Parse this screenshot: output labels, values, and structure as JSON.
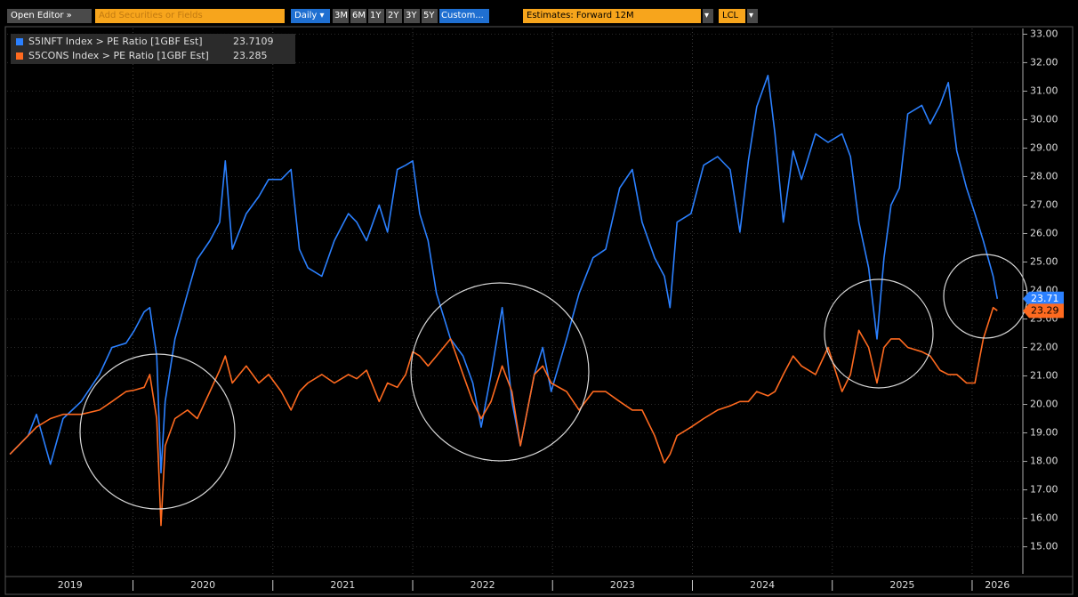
{
  "toolbar": {
    "open_editor": "Open Editor »",
    "search_placeholder": "Add Securities or Fields",
    "frequency": "Daily",
    "ranges": [
      "3M",
      "6M",
      "1Y",
      "2Y",
      "3Y",
      "5Y",
      "Custom..."
    ],
    "estimates": "Estimates: Forward 12M",
    "currency": "LCL"
  },
  "chart_data": {
    "type": "line",
    "x": [
      2019.12,
      2019.25,
      2019.31,
      2019.41,
      2019.5,
      2019.63,
      2019.76,
      2019.85,
      2019.95,
      2020.01,
      2020.08,
      2020.12,
      2020.17,
      2020.2,
      2020.23,
      2020.3,
      2020.39,
      2020.46,
      2020.55,
      2020.62,
      2020.66,
      2020.71,
      2020.81,
      2020.9,
      2020.97,
      2021.06,
      2021.13,
      2021.19,
      2021.25,
      2021.35,
      2021.44,
      2021.54,
      2021.6,
      2021.67,
      2021.76,
      2021.82,
      2021.89,
      2021.95,
      2022.0,
      2022.05,
      2022.11,
      2022.17,
      2022.27,
      2022.36,
      2022.43,
      2022.49,
      2022.56,
      2022.64,
      2022.71,
      2022.77,
      2022.87,
      2022.93,
      2022.99,
      2023.1,
      2023.19,
      2023.29,
      2023.38,
      2023.48,
      2023.57,
      2023.64,
      2023.73,
      2023.8,
      2023.84,
      2023.89,
      2023.99,
      2024.08,
      2024.18,
      2024.27,
      2024.34,
      2024.4,
      2024.46,
      2024.54,
      2024.59,
      2024.65,
      2024.72,
      2024.78,
      2024.88,
      2024.97,
      2025.07,
      2025.13,
      2025.19,
      2025.26,
      2025.32,
      2025.37,
      2025.42,
      2025.48,
      2025.54,
      2025.64,
      2025.7,
      2025.77,
      2025.83,
      2025.89,
      2025.96,
      2026.02,
      2026.08,
      2026.15,
      2026.18
    ],
    "series": [
      {
        "name": "S5INFT Index > PE Ratio [1GBF Est]",
        "color": "#2b80ff",
        "last_value": {
          "value": 23.7109,
          "label": "23.71"
        },
        "values": [
          18.25,
          18.9,
          19.65,
          17.9,
          19.5,
          20.1,
          21.05,
          22.0,
          22.15,
          22.6,
          23.25,
          23.4,
          21.7,
          17.6,
          20.1,
          22.3,
          23.9,
          25.1,
          25.75,
          26.4,
          28.55,
          25.45,
          26.7,
          27.3,
          27.9,
          27.9,
          28.25,
          25.45,
          24.8,
          24.5,
          25.75,
          26.7,
          26.4,
          25.75,
          27.0,
          26.05,
          28.25,
          28.4,
          28.55,
          26.7,
          25.75,
          23.9,
          22.3,
          21.7,
          20.75,
          19.2,
          21.05,
          23.4,
          20.1,
          18.55,
          21.05,
          22.0,
          20.45,
          22.3,
          23.9,
          25.15,
          25.45,
          27.6,
          28.25,
          26.4,
          25.15,
          24.5,
          23.4,
          26.4,
          26.7,
          28.4,
          28.7,
          28.25,
          26.05,
          28.55,
          30.45,
          31.55,
          29.5,
          26.4,
          28.9,
          27.9,
          29.5,
          29.2,
          29.5,
          28.7,
          26.4,
          24.8,
          22.3,
          25.15,
          27.0,
          27.6,
          30.2,
          30.5,
          29.85,
          30.5,
          31.3,
          28.9,
          27.6,
          26.7,
          25.75,
          24.5,
          23.71
        ]
      },
      {
        "name": "S5CONS Index > PE Ratio [1GBF Est]",
        "color": "#ff6a1f",
        "last_value": {
          "value": 23.285,
          "label": "23.29"
        },
        "values": [
          18.25,
          18.9,
          19.2,
          19.5,
          19.65,
          19.65,
          19.8,
          20.1,
          20.45,
          20.5,
          20.6,
          21.05,
          19.5,
          15.75,
          18.55,
          19.5,
          19.8,
          19.5,
          20.45,
          21.2,
          21.7,
          20.75,
          21.35,
          20.75,
          21.05,
          20.45,
          19.8,
          20.45,
          20.75,
          21.05,
          20.75,
          21.05,
          20.9,
          21.2,
          20.1,
          20.75,
          20.6,
          21.05,
          21.85,
          21.7,
          21.35,
          21.7,
          22.3,
          21.05,
          20.1,
          19.5,
          20.1,
          21.35,
          20.45,
          18.55,
          21.05,
          21.35,
          20.75,
          20.45,
          19.8,
          20.45,
          20.45,
          20.1,
          19.8,
          19.8,
          18.9,
          17.95,
          18.25,
          18.9,
          19.2,
          19.5,
          19.8,
          19.95,
          20.1,
          20.1,
          20.45,
          20.3,
          20.45,
          21.05,
          21.7,
          21.35,
          21.05,
          22.0,
          20.45,
          21.05,
          22.6,
          22.0,
          20.75,
          22.0,
          22.3,
          22.3,
          22.0,
          21.85,
          21.7,
          21.2,
          21.05,
          21.05,
          20.75,
          20.75,
          22.3,
          23.4,
          23.29
        ]
      }
    ],
    "xlim": [
      2019.1,
      2026.35
    ],
    "xticks": [
      {
        "value": 2019.55,
        "label": "2019"
      },
      {
        "value": 2020.5,
        "label": "2020"
      },
      {
        "value": 2021.5,
        "label": "2021"
      },
      {
        "value": 2022.5,
        "label": "2022"
      },
      {
        "value": 2023.5,
        "label": "2023"
      },
      {
        "value": 2024.5,
        "label": "2024"
      },
      {
        "value": 2025.5,
        "label": "2025"
      },
      {
        "value": 2026.18,
        "label": "2026"
      }
    ],
    "xgrid": [
      2020,
      2021,
      2022,
      2023,
      2024,
      2025,
      2026
    ],
    "ylim": [
      14.05,
      33.2
    ],
    "yticks": [
      {
        "value": 15,
        "label": "15.00"
      },
      {
        "value": 16,
        "label": "16.00"
      },
      {
        "value": 17,
        "label": "17.00"
      },
      {
        "value": 18,
        "label": "18.00"
      },
      {
        "value": 19,
        "label": "19.00"
      },
      {
        "value": 20,
        "label": "20.00"
      },
      {
        "value": 21,
        "label": "21.00"
      },
      {
        "value": 22,
        "label": "22.00"
      },
      {
        "value": 23,
        "label": "23.00"
      },
      {
        "value": 24,
        "label": "24.00"
      },
      {
        "value": 25,
        "label": "25.00"
      },
      {
        "value": 26,
        "label": "26.00"
      },
      {
        "value": 27,
        "label": "27.00"
      },
      {
        "value": 28,
        "label": "28.00"
      },
      {
        "value": 29,
        "label": "29.00"
      },
      {
        "value": 30,
        "label": "30.00"
      },
      {
        "value": 31,
        "label": "31.00"
      },
      {
        "value": 32,
        "label": "32.00"
      },
      {
        "value": 33,
        "label": "33.00"
      }
    ],
    "grid": true
  }
}
